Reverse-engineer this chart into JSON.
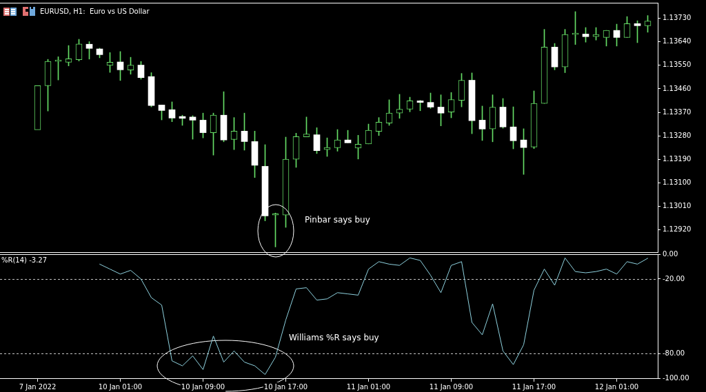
{
  "chart_data": [
    {
      "type": "candlestick",
      "title": "EURUSD, H1:  Euro vs US Dollar",
      "categories": [
        null,
        null,
        null,
        null,
        null,
        null,
        null,
        null,
        null,
        null,
        null,
        null,
        null,
        null,
        null,
        null,
        null,
        null,
        null,
        null,
        null,
        null,
        null,
        null,
        null,
        null,
        null,
        null,
        null,
        null,
        null,
        null,
        null,
        null,
        null,
        null,
        null,
        null,
        null,
        null,
        null,
        null,
        null,
        null,
        null,
        null,
        null,
        null,
        null,
        null,
        null,
        null,
        null,
        null,
        null,
        null,
        null,
        null,
        null,
        null
      ],
      "ohlc": [
        [
          1.13303,
          1.13472,
          1.13303,
          1.13472
        ],
        [
          1.13472,
          1.13573,
          1.13375,
          1.13565
        ],
        [
          1.13565,
          1.13583,
          1.13494,
          1.13565
        ],
        [
          1.13562,
          1.13626,
          1.13548,
          1.13575
        ],
        [
          1.13572,
          1.1365,
          1.13567,
          1.13632
        ],
        [
          1.13631,
          1.13641,
          1.13574,
          1.13615
        ],
        [
          1.13613,
          1.13616,
          1.13579,
          1.13591
        ],
        [
          1.1355,
          1.13599,
          1.13523,
          1.13562
        ],
        [
          1.13563,
          1.13603,
          1.13492,
          1.13533
        ],
        [
          1.13532,
          1.13581,
          1.13516,
          1.13551
        ],
        [
          1.13551,
          1.13565,
          1.13497,
          1.13503
        ],
        [
          1.13507,
          1.13522,
          1.13391,
          1.13396
        ],
        [
          1.13398,
          1.13398,
          1.13341,
          1.13377
        ],
        [
          1.1338,
          1.1341,
          1.13334,
          1.13348
        ],
        [
          1.13354,
          1.13359,
          1.1332,
          1.13347
        ],
        [
          1.13352,
          1.13357,
          1.13267,
          1.1334
        ],
        [
          1.1334,
          1.13367,
          1.13272,
          1.13292
        ],
        [
          1.13292,
          1.13367,
          1.13206,
          1.13359
        ],
        [
          1.13359,
          1.13449,
          1.13257,
          1.13264
        ],
        [
          1.13266,
          1.1335,
          1.13227,
          1.13298
        ],
        [
          1.13298,
          1.13367,
          1.13225,
          1.13258
        ],
        [
          1.13258,
          1.13298,
          1.1312,
          1.13167
        ],
        [
          1.13163,
          1.13246,
          1.12954,
          1.12973
        ],
        [
          1.12976,
          1.12984,
          1.12854,
          1.12977
        ],
        [
          1.12976,
          1.13275,
          1.12929,
          1.1319
        ],
        [
          1.1319,
          1.1329,
          1.13159,
          1.13277
        ],
        [
          1.13276,
          1.13352,
          1.13276,
          1.13287
        ],
        [
          1.13284,
          1.13311,
          1.13212,
          1.13223
        ],
        [
          1.13227,
          1.13272,
          1.13201,
          1.13235
        ],
        [
          1.13234,
          1.13304,
          1.13221,
          1.13264
        ],
        [
          1.13264,
          1.13301,
          1.13253,
          1.13253
        ],
        [
          1.13233,
          1.13282,
          1.13191,
          1.13248
        ],
        [
          1.13249,
          1.13325,
          1.13249,
          1.13301
        ],
        [
          1.13297,
          1.1335,
          1.13281,
          1.13332
        ],
        [
          1.13329,
          1.13418,
          1.1332,
          1.13367
        ],
        [
          1.13367,
          1.13439,
          1.13347,
          1.13382
        ],
        [
          1.13382,
          1.13428,
          1.13372,
          1.13414
        ],
        [
          1.13414,
          1.13416,
          1.13376,
          1.13408
        ],
        [
          1.13408,
          1.13444,
          1.13385,
          1.1339
        ],
        [
          1.1339,
          1.13437,
          1.13318,
          1.13367
        ],
        [
          1.13371,
          1.13446,
          1.13349,
          1.13419
        ],
        [
          1.13416,
          1.13519,
          1.13391,
          1.13493
        ],
        [
          1.13493,
          1.13521,
          1.13288,
          1.13338
        ],
        [
          1.1334,
          1.13394,
          1.13262,
          1.13306
        ],
        [
          1.13306,
          1.13437,
          1.13257,
          1.1339
        ],
        [
          1.1339,
          1.13423,
          1.13309,
          1.13314
        ],
        [
          1.13314,
          1.13391,
          1.1323,
          1.13261
        ],
        [
          1.13264,
          1.13307,
          1.13132,
          1.13235
        ],
        [
          1.13237,
          1.13452,
          1.13231,
          1.13404
        ],
        [
          1.13404,
          1.13688,
          1.13404,
          1.1362
        ],
        [
          1.1362,
          1.13634,
          1.13533,
          1.13544
        ],
        [
          1.13544,
          1.13688,
          1.13522,
          1.13668
        ],
        [
          1.13668,
          1.13756,
          1.1363,
          1.13668
        ],
        [
          1.1367,
          1.13695,
          1.13639,
          1.1366
        ],
        [
          1.1366,
          1.13695,
          1.13647,
          1.13668
        ],
        [
          1.13657,
          1.13684,
          1.13624,
          1.13684
        ],
        [
          1.13684,
          1.13708,
          1.13624,
          1.13657
        ],
        [
          1.13657,
          1.13737,
          1.13657,
          1.1371
        ],
        [
          1.1371,
          1.13721,
          1.13637,
          1.13702
        ],
        [
          1.13702,
          1.13741,
          1.13677,
          1.1372
        ]
      ],
      "color": "#66dd66",
      "colors": [
        "#66dd66",
        "#66dd66",
        "#66dd66",
        "#66dd66",
        "#66dd66",
        "#ffffff",
        "#ffffff",
        "#66dd66",
        "#ffffff",
        "#66dd66",
        "#ffffff",
        "#ffffff",
        "#ffffff",
        "#ffffff",
        "#ffffff",
        "#ffffff",
        "#ffffff",
        "#66dd66",
        "#ffffff",
        "#66dd66",
        "#ffffff",
        "#ffffff",
        "#ffffff",
        "#66dd66",
        "#66dd66",
        "#66dd66",
        "#66dd66",
        "#ffffff",
        "#66dd66",
        "#66dd66",
        "#ffffff",
        "#66dd66",
        "#66dd66",
        "#66dd66",
        "#66dd66",
        "#66dd66",
        "#66dd66",
        "#ffffff",
        "#ffffff",
        "#ffffff",
        "#66dd66",
        "#66dd66",
        "#ffffff",
        "#ffffff",
        "#66dd66",
        "#ffffff",
        "#ffffff",
        "#ffffff",
        "#66dd66",
        "#66dd66",
        "#ffffff",
        "#66dd66",
        "#66dd66",
        "#ffffff",
        "#66dd66",
        "#66dd66",
        "#ffffff",
        "#66dd66",
        "#ffffff",
        "#66dd66"
      ],
      "ylim": [
        1.12834,
        1.1379
      ],
      "yticks": [
        {
          "value": 1.1373,
          "label": "1.13730"
        },
        {
          "value": 1.1364,
          "label": "1.13640"
        },
        {
          "value": 1.1355,
          "label": "1.13550"
        },
        {
          "value": 1.1346,
          "label": "1.13460"
        },
        {
          "value": 1.1337,
          "label": "1.13370"
        },
        {
          "value": 1.1328,
          "label": "1.13280"
        },
        {
          "value": 1.1319,
          "label": "1.13190"
        },
        {
          "value": 1.131,
          "label": "1.13100"
        },
        {
          "value": 1.1301,
          "label": "1.13010"
        },
        {
          "value": 1.1292,
          "label": "1.12920"
        }
      ],
      "annotations": [
        "Pinbar says buy"
      ]
    },
    {
      "type": "line",
      "title": "%R(14) -3.27",
      "categories": [
        "7 Jan 2022",
        null,
        null,
        null,
        null,
        null,
        null,
        null,
        "10 Jan 01:00",
        null,
        null,
        null,
        null,
        null,
        null,
        null,
        "10 Jan 09:00",
        null,
        null,
        null,
        null,
        null,
        null,
        null,
        "10 Jan 17:00",
        null,
        null,
        null,
        null,
        null,
        null,
        null,
        "11 Jan 01:00",
        null,
        null,
        null,
        null,
        null,
        null,
        null,
        "11 Jan 09:00",
        null,
        null,
        null,
        null,
        null,
        null,
        null,
        "11 Jan 17:00",
        null,
        null,
        null,
        null,
        null,
        null,
        null,
        "12 Jan 01:00",
        null,
        null,
        null
      ],
      "values": [
        null,
        null,
        null,
        null,
        null,
        null,
        -8,
        -12,
        -16,
        -13,
        -20,
        -35,
        -41,
        -86,
        -90,
        -82,
        -93,
        -66,
        -87,
        -78,
        -87,
        -90,
        -97,
        -83,
        -53,
        -28,
        -27,
        -37,
        -36,
        -31,
        -32,
        -33,
        -12,
        -6,
        -8,
        -9,
        -3,
        -5,
        -17,
        -31,
        -9,
        -6,
        -55,
        -65,
        -40,
        -78,
        -89,
        -73,
        -29,
        -12,
        -25,
        -3,
        -14,
        -15,
        -14,
        -12,
        -16,
        -6,
        -8,
        -3.27
      ],
      "color": "#8fd3e0",
      "marker": "none",
      "ylim": [
        -100,
        0
      ],
      "yticks": [
        {
          "value": 0,
          "label": "0.00"
        },
        {
          "value": -20,
          "label": "-20.00"
        },
        {
          "value": -80,
          "label": "-80.00"
        },
        {
          "value": -100,
          "label": "-100.00"
        }
      ],
      "ref_lines": [
        {
          "axis": "y",
          "value": -20,
          "color": "#c8c8c8",
          "line_style": "dashed"
        },
        {
          "axis": "y",
          "value": -80,
          "color": "#c8c8c8",
          "line_style": "dashed"
        }
      ],
      "annotations": [
        "Williams %R says buy"
      ]
    }
  ]
}
